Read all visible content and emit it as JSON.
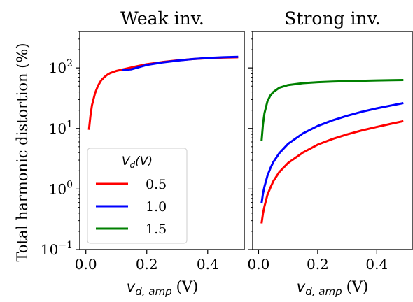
{
  "figure": {
    "ylabel": "Total harmonic distortion (%)"
  },
  "chart_data": [
    {
      "type": "line",
      "title": "Weak inv.",
      "xlabel_main": "v",
      "xlabel_sub": "d, amp",
      "xlabel_unit": "(V)",
      "y_scale": "log",
      "xlim": [
        -0.02,
        0.52
      ],
      "ylim": [
        0.1,
        400
      ],
      "xticks": [
        0.0,
        0.2,
        0.4
      ],
      "xtick_labels": [
        "0.0",
        "0.2",
        "0.4"
      ],
      "yticks": [
        0.1,
        1,
        10,
        100
      ],
      "ytick_labels": [
        {
          "base": "10",
          "exp": "−1"
        },
        {
          "base": "10",
          "exp": "0"
        },
        {
          "base": "10",
          "exp": "1"
        },
        {
          "base": "10",
          "exp": "2"
        }
      ],
      "series": [
        {
          "name": "0.5",
          "color": "#ff0000",
          "x": [
            0.01,
            0.015,
            0.02,
            0.03,
            0.04,
            0.05,
            0.06,
            0.07,
            0.08,
            0.1,
            0.12,
            0.15,
            0.2,
            0.25,
            0.3,
            0.35,
            0.4,
            0.45,
            0.5
          ],
          "y": [
            9.5,
            16,
            24,
            38,
            51,
            62,
            70,
            77,
            82,
            89,
            94,
            102,
            115,
            125,
            133,
            140,
            145,
            148,
            150
          ]
        },
        {
          "name": "1.0",
          "color": "#0000ff",
          "x": [
            0.12,
            0.15,
            0.2,
            0.25,
            0.3,
            0.35,
            0.4,
            0.45,
            0.5
          ],
          "y": [
            92,
            95,
            112,
            123,
            132,
            140,
            146,
            150,
            153
          ]
        }
      ]
    },
    {
      "type": "line",
      "title": "Strong inv.",
      "xlabel_main": "v",
      "xlabel_sub": "d, amp",
      "xlabel_unit": "(V)",
      "y_scale": "log",
      "xlim": [
        -0.02,
        0.52
      ],
      "ylim": [
        0.1,
        400
      ],
      "xticks": [
        0.0,
        0.2,
        0.4
      ],
      "xtick_labels": [
        "0.0",
        "0.2",
        "0.4"
      ],
      "legend": {
        "title_main": "V",
        "title_sub": "d",
        "title_rest": "(V)",
        "placement": "lower-left of Weak inv. panel"
      },
      "series": [
        {
          "name": "0.5",
          "color": "#ff0000",
          "x": [
            0.01,
            0.015,
            0.02,
            0.03,
            0.04,
            0.05,
            0.07,
            0.1,
            0.15,
            0.2,
            0.25,
            0.3,
            0.35,
            0.4,
            0.45,
            0.49
          ],
          "y": [
            0.27,
            0.4,
            0.52,
            0.8,
            1.05,
            1.35,
            1.9,
            2.7,
            4.0,
            5.4,
            6.7,
            8.0,
            9.3,
            10.6,
            12.0,
            13.2
          ]
        },
        {
          "name": "1.0",
          "color": "#0000ff",
          "x": [
            0.01,
            0.015,
            0.02,
            0.03,
            0.04,
            0.05,
            0.07,
            0.1,
            0.15,
            0.2,
            0.25,
            0.3,
            0.35,
            0.4,
            0.45,
            0.49
          ],
          "y": [
            0.58,
            0.85,
            1.1,
            1.65,
            2.2,
            2.8,
            3.9,
            5.6,
            8.3,
            11.0,
            13.6,
            16.2,
            18.9,
            21.5,
            24.0,
            26.2
          ]
        },
        {
          "name": "1.5",
          "color": "#008000",
          "x": [
            0.01,
            0.015,
            0.02,
            0.03,
            0.04,
            0.05,
            0.07,
            0.1,
            0.15,
            0.2,
            0.25,
            0.3,
            0.35,
            0.4,
            0.45,
            0.49
          ],
          "y": [
            6.2,
            12,
            18,
            28,
            35,
            40,
            47,
            52,
            56,
            58,
            59.5,
            60.5,
            61.3,
            62,
            62.5,
            63
          ]
        }
      ]
    }
  ]
}
